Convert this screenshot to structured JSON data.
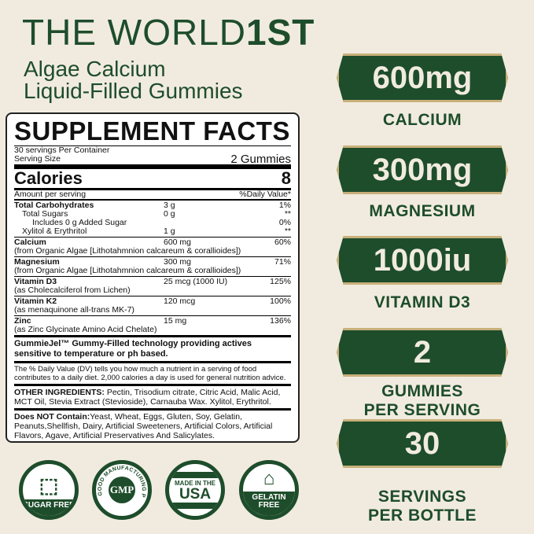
{
  "headline": {
    "line1": "THE WORLD",
    "line1_bold": "1ST",
    "line2": "Algae Calcium",
    "line3": "Liquid-Filled Gummies"
  },
  "colors": {
    "background": "#f1ebdf",
    "brand_green": "#1e4d2b",
    "gold": "#c8b07a"
  },
  "label": {
    "title": "SUPPLEMENT FACTS",
    "servings": "30 servings Per Container",
    "serving_size_label": "Serving Size",
    "serving_size": "2 Gummies",
    "calories_label": "Calories",
    "calories": "8",
    "amount_header": "Amount per serving",
    "dv_header": "%Daily Value*",
    "carbs": [
      {
        "name": "Total Carbohydrates",
        "amount": "3 g",
        "dv": "1%"
      },
      {
        "name": "Total Sugars",
        "amount": "0 g",
        "dv": "**"
      },
      {
        "name": "Includes 0 g Added Sugar",
        "amount": "",
        "dv": "0%"
      },
      {
        "name": "Xylitol & Erythritol",
        "amount": "1 g",
        "dv": "**"
      }
    ],
    "nutrients": [
      {
        "name": "Calcium",
        "detail": "(from Organic Algae [Lithotahmnion calcareum & corallioides])",
        "amount": "600 mg",
        "dv": "60%"
      },
      {
        "name": "Magnesium",
        "detail": "(from Organic Algae [Lithotahmnion calcareum & corallioides])",
        "amount": "300 mg",
        "dv": "71%"
      },
      {
        "name": "Vitamin D3",
        "detail": "(as Cholecalciferol from Lichen)",
        "amount": "25 mcg (1000 IU)",
        "dv": "125%"
      },
      {
        "name": "Vitamin K2",
        "detail": "(as menaquinone all-trans MK-7)",
        "amount": "120 mcg",
        "dv": "100%"
      },
      {
        "name": "Zinc",
        "detail": "(as Zinc Glycinate Amino Acid Chelate)",
        "amount": "15 mg",
        "dv": "136%"
      }
    ],
    "tech": "GummieJel™ Gummy-Filled technology providing actives sensitive to temperature or ph based.",
    "dv_note": "The % Daily Value (DV) tells you how much a nutrient in a serving of food contributes to a daily diet. 2,000 calories a day is used for general nutrition advice.",
    "other_label": "OTHER INGREDIENTS:",
    "other": " Pectin, Trisodium citrate, Citric Acid, Malic Acid, MCT Oil, Stevia Extract (Stevioside), Carnauba Wax. Xylitol, Erythritol.",
    "not_label": "Does NOT Contain:",
    "not": "Yeast, Wheat, Eggs, Gluten, Soy, Gelatin, Peanuts,Shellfish, Dairy, Artificial Sweeteners, Artificial Colors, Artificial Flavors, Agave, Artificial Preservatives And Salicylates."
  },
  "badges": [
    {
      "value": "600mg",
      "label": "CALCIUM"
    },
    {
      "value": "300mg",
      "label": "MAGNESIUM"
    },
    {
      "value": "1000iu",
      "label": "VITAMIN D3"
    },
    {
      "value": "2",
      "label": "GUMMIES PER SERVING"
    },
    {
      "value": "30",
      "label": "SERVINGS PER BOTTLE"
    }
  ],
  "icons": [
    {
      "icon": "sugar-cubes-icon",
      "text": "SUGAR FREE"
    },
    {
      "icon": "gmp-icon",
      "text": "GMP",
      "ring": "GOOD MANUFACTURING PRACTICE"
    },
    {
      "icon": "usa-icon",
      "text": "USA",
      "top": "MADE IN THE"
    },
    {
      "icon": "jelly-icon",
      "text": "GELATIN FREE"
    }
  ]
}
